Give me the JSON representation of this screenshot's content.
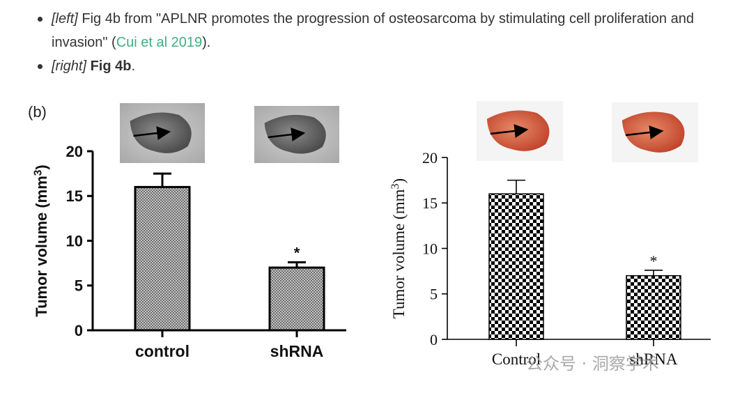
{
  "text": {
    "left_tag": "[left]",
    "left_caption": "Fig 4b from \"APLNR promotes the progression of osteosarcoma by stimulating cell proliferation and invasion\" (",
    "citation": "Cui et al 2019",
    "left_end": ").",
    "right_tag": "[right]",
    "right_bold": "Fig 4b",
    "right_end": "."
  },
  "watermark": "公众号 · 洞察学术",
  "colors": {
    "link": "#3fae7e",
    "text": "#333333"
  },
  "chart_data": [
    {
      "type": "bar",
      "panel_label": "(b)",
      "categories": [
        "control",
        "shRNA"
      ],
      "values": [
        16,
        7
      ],
      "errors": [
        1.5,
        0.6
      ],
      "annotations": [
        "",
        "*"
      ],
      "ylabel": "Tumor volume (mm³)",
      "ylabel_main": "Tumor volume (mm",
      "ylabel_sup": "3",
      "ylabel_end": ")",
      "ylim": [
        0,
        20
      ],
      "yticks": [
        "0",
        "5",
        "10",
        "15",
        "20"
      ],
      "insets": [
        "gray tumor photo with arrow",
        "gray tumor photo with arrow"
      ]
    },
    {
      "type": "bar",
      "categories": [
        "Control",
        "shRNA"
      ],
      "values": [
        16,
        7
      ],
      "errors": [
        1.5,
        0.6
      ],
      "annotations": [
        "",
        "*"
      ],
      "ylabel": "Tumor volume (mm³)",
      "ylabel_main": "Tumor volume (mm",
      "ylabel_sup": "3",
      "ylabel_end": ")",
      "ylim": [
        0,
        20
      ],
      "yticks": [
        "0",
        "5",
        "10",
        "15",
        "20"
      ],
      "insets": [
        "red tumor photo with arrow",
        "red tumor photo with arrow"
      ]
    }
  ]
}
